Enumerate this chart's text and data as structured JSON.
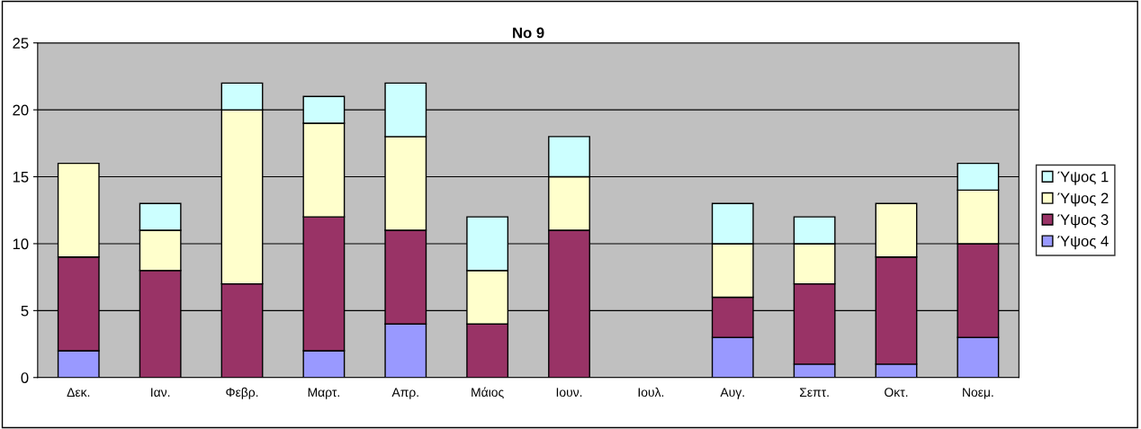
{
  "chart_data": {
    "type": "bar",
    "title": "No 9",
    "stacked": true,
    "categories": [
      "Δεκ.",
      "Ιαν.",
      "Φεβρ.",
      "Μαρτ.",
      "Απρ.",
      "Μάιος",
      "Ιουν.",
      "Ιουλ.",
      "Αυγ.",
      "Σεπτ.",
      "Οκτ.",
      "Νοεμ."
    ],
    "series": [
      {
        "name": "Ύψος 4",
        "color": "#9999ff",
        "values": [
          2,
          null,
          null,
          2,
          4,
          null,
          null,
          null,
          3,
          1,
          1,
          3
        ]
      },
      {
        "name": "Ύψος 3",
        "color": "#993366",
        "values": [
          7,
          8,
          7,
          10,
          7,
          4,
          11,
          null,
          3,
          6,
          8,
          7
        ]
      },
      {
        "name": "Ύψος 2",
        "color": "#ffffcc",
        "values": [
          7,
          3,
          13,
          7,
          7,
          4,
          4,
          null,
          4,
          3,
          4,
          4
        ]
      },
      {
        "name": "Ύψος 1",
        "color": "#ccffff",
        "values": [
          null,
          2,
          2,
          2,
          4,
          4,
          3,
          null,
          3,
          2,
          null,
          2
        ]
      }
    ],
    "ylim": [
      0,
      25
    ],
    "yticks": [
      0,
      5,
      10,
      15,
      20,
      25
    ],
    "grid": "y",
    "legend": "right"
  }
}
